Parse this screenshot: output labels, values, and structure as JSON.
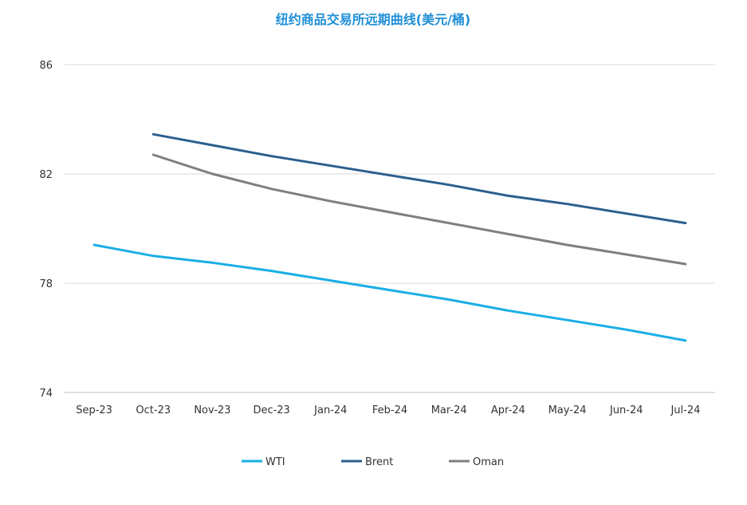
{
  "chart_data": {
    "type": "line",
    "title": "纽约商品交易所远期曲线(美元/桶)",
    "xlabel": "",
    "ylabel": "",
    "categories": [
      "Sep-23",
      "Oct-23",
      "Nov-23",
      "Dec-23",
      "Jan-24",
      "Feb-24",
      "Mar-24",
      "Apr-24",
      "May-24",
      "Jun-24",
      "Jul-24"
    ],
    "ylim": [
      74,
      86
    ],
    "yticks": [
      74,
      78,
      82,
      86
    ],
    "grid": true,
    "legend_position": "bottom",
    "series": [
      {
        "name": "WTI",
        "color": "#1aaee6",
        "values": [
          79.4,
          79.0,
          78.75,
          78.45,
          78.1,
          77.75,
          77.4,
          77.0,
          76.65,
          76.3,
          75.9
        ]
      },
      {
        "name": "Brent",
        "color": "#2b5f8e",
        "values": [
          null,
          83.45,
          83.05,
          82.65,
          82.3,
          81.95,
          81.6,
          81.2,
          80.9,
          80.55,
          80.2
        ]
      },
      {
        "name": "Oman",
        "color": "#7f7f7f",
        "values": [
          null,
          82.7,
          82.0,
          81.45,
          81.0,
          80.6,
          80.2,
          79.8,
          79.4,
          79.05,
          78.7
        ]
      }
    ]
  }
}
